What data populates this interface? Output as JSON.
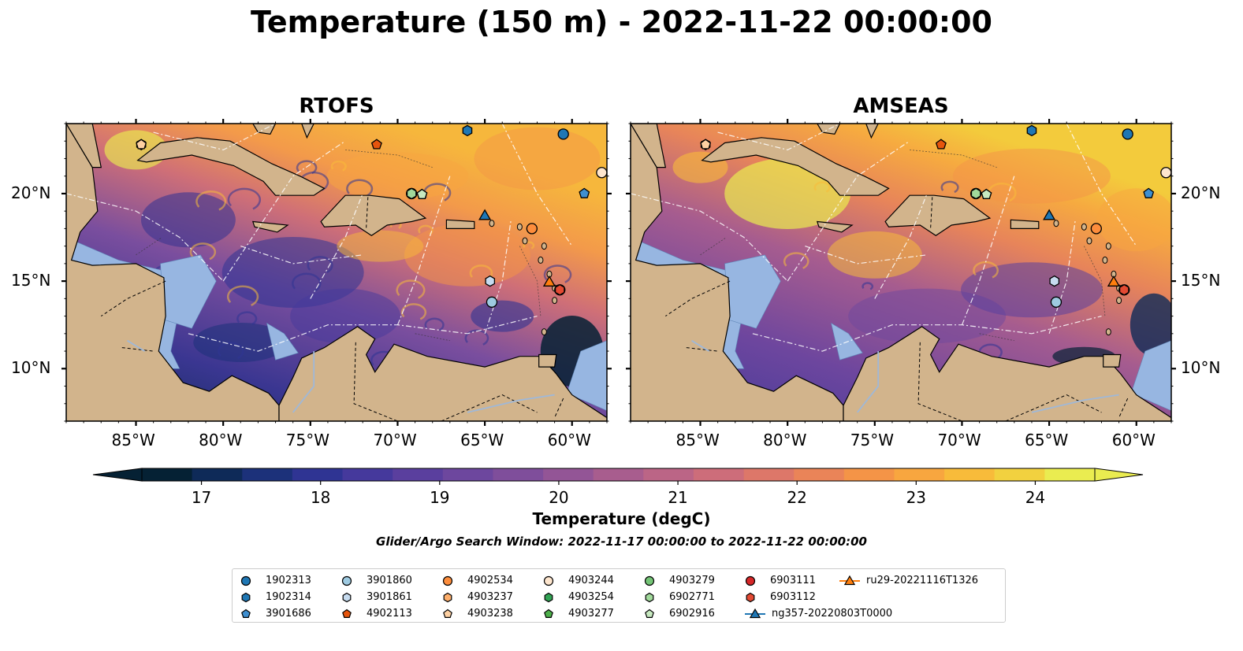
{
  "figure": {
    "title": "Temperature (150 m) - 2022-11-22 00:00:00",
    "search_window": "Glider/Argo Search Window: 2022-11-17 00:00:00 to 2022-11-22 00:00:00"
  },
  "panels": [
    {
      "title": "RTOFS"
    },
    {
      "title": "AMSEAS"
    }
  ],
  "axes": {
    "lon_ticks": [
      "85°W",
      "80°W",
      "75°W",
      "70°W",
      "65°W",
      "60°W"
    ],
    "lon_values": [
      -85,
      -80,
      -75,
      -70,
      -65,
      -60
    ],
    "lat_ticks": [
      "20°N",
      "15°N",
      "10°N"
    ],
    "lat_values": [
      20,
      15,
      10
    ],
    "lon_range": [
      -89,
      -58
    ],
    "lat_range": [
      7,
      24
    ]
  },
  "colorbar": {
    "label": "Temperature (degC)",
    "ticks": [
      "17",
      "18",
      "19",
      "20",
      "21",
      "22",
      "23",
      "24"
    ],
    "tick_values": [
      17,
      18,
      19,
      20,
      21,
      22,
      23,
      24
    ],
    "range": [
      16.5,
      24.5
    ],
    "extend": "both",
    "colors": [
      "#052134",
      "#0e2a58",
      "#1c317a",
      "#2f3493",
      "#45399c",
      "#5a3f9e",
      "#6d479e",
      "#7f4e9b",
      "#935596",
      "#a85d8e",
      "#bb6586",
      "#cd6d7a",
      "#dd7769",
      "#ea8458",
      "#f49447",
      "#f8a63f",
      "#f8bb3a",
      "#f2d13f",
      "#eaec50"
    ],
    "colormap": "thermal"
  },
  "colors": {
    "land": "#d2b48c",
    "shallow_water": "#97b6e1"
  },
  "platforms": [
    {
      "id": "1902313",
      "marker": "circle",
      "color": "#1f77b4",
      "lon": -60.5,
      "lat": 23.4
    },
    {
      "id": "1902314",
      "marker": "hexagon",
      "color": "#1f77b4",
      "lon": -66.0,
      "lat": 23.6
    },
    {
      "id": "3901686",
      "marker": "pentagon",
      "color": "#3f8fd0",
      "lon": -59.3,
      "lat": 20.0
    },
    {
      "id": "3901860",
      "marker": "circle",
      "color": "#9ecae1",
      "lon": -64.6,
      "lat": 13.8
    },
    {
      "id": "3901861",
      "marker": "hexagon",
      "color": "#c6dbef",
      "lon": -64.7,
      "lat": 15.0
    },
    {
      "id": "4902113",
      "marker": "pentagon",
      "color": "#e6550d",
      "lon": -71.2,
      "lat": 22.8
    },
    {
      "id": "4902534",
      "marker": "circle",
      "color": "#fd8d3c",
      "lon": -62.3,
      "lat": 18.0
    },
    {
      "id": "4903237",
      "marker": "hexagon",
      "color": "#fdae6b",
      "lon": -84.7,
      "lat": 22.8
    },
    {
      "id": "4903238",
      "marker": "pentagon",
      "color": "#fdd0a2",
      "lon": -84.7,
      "lat": 22.8
    },
    {
      "id": "4903244",
      "marker": "circle",
      "color": "#fee6ce",
      "lon": -58.3,
      "lat": 21.2
    },
    {
      "id": "4903254",
      "marker": "hexagon",
      "color": "#31a354",
      "lon": -69.2,
      "lat": 20.0
    },
    {
      "id": "4903277",
      "marker": "pentagon",
      "color": "#4daf4a",
      "lon": -68.6,
      "lat": 19.95
    },
    {
      "id": "4903279",
      "marker": "circle",
      "color": "#74c476",
      "lon": -69.2,
      "lat": 20.0
    },
    {
      "id": "6902771",
      "marker": "hexagon",
      "color": "#a1d99b",
      "lon": -69.2,
      "lat": 20.0
    },
    {
      "id": "6902916",
      "marker": "pentagon",
      "color": "#c7e9c0",
      "lon": -68.6,
      "lat": 19.95
    },
    {
      "id": "6903111",
      "marker": "circle",
      "color": "#d62728",
      "lon": -60.7,
      "lat": 14.5
    },
    {
      "id": "6903112",
      "marker": "hexagon",
      "color": "#e34a33",
      "lon": -60.7,
      "lat": 14.5
    },
    {
      "id": "ng357-20220803T0000",
      "marker": "triangle",
      "color": "#1f77b4",
      "line": true,
      "lon": -65.0,
      "lat": 18.7
    },
    {
      "id": "ru29-20221116T1326",
      "marker": "triangle",
      "color": "#ff7f0e",
      "line": true,
      "lon": -61.3,
      "lat": 14.9
    }
  ]
}
